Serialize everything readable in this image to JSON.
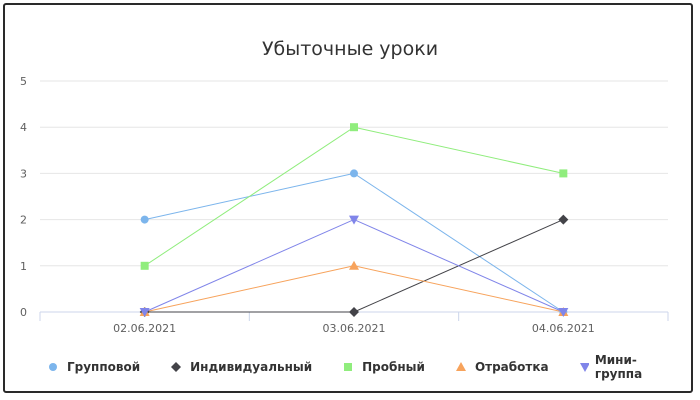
{
  "chart_data": {
    "type": "line",
    "title": "Убыточные уроки",
    "categories": [
      "02.06.2021",
      "03.06.2021",
      "04.06.2021"
    ],
    "ylim": [
      0,
      5
    ],
    "yticks": [
      0,
      1,
      2,
      3,
      4,
      5
    ],
    "grid": true,
    "legend_position": "bottom",
    "series": [
      {
        "name": "Групповой",
        "values": [
          2,
          3,
          0
        ],
        "color": "#7cb5ec",
        "marker": "circle"
      },
      {
        "name": "Индивидуальный",
        "values": [
          0,
          0,
          2
        ],
        "color": "#434348",
        "marker": "diamond"
      },
      {
        "name": "Пробный",
        "values": [
          1,
          4,
          3
        ],
        "color": "#90ed7d",
        "marker": "square"
      },
      {
        "name": "Отработка",
        "values": [
          0,
          1,
          0
        ],
        "color": "#f7a35c",
        "marker": "triangle"
      },
      {
        "name": "Мини-группа",
        "values": [
          0,
          2,
          0
        ],
        "color": "#8085e9",
        "marker": "triangle-down"
      }
    ]
  }
}
